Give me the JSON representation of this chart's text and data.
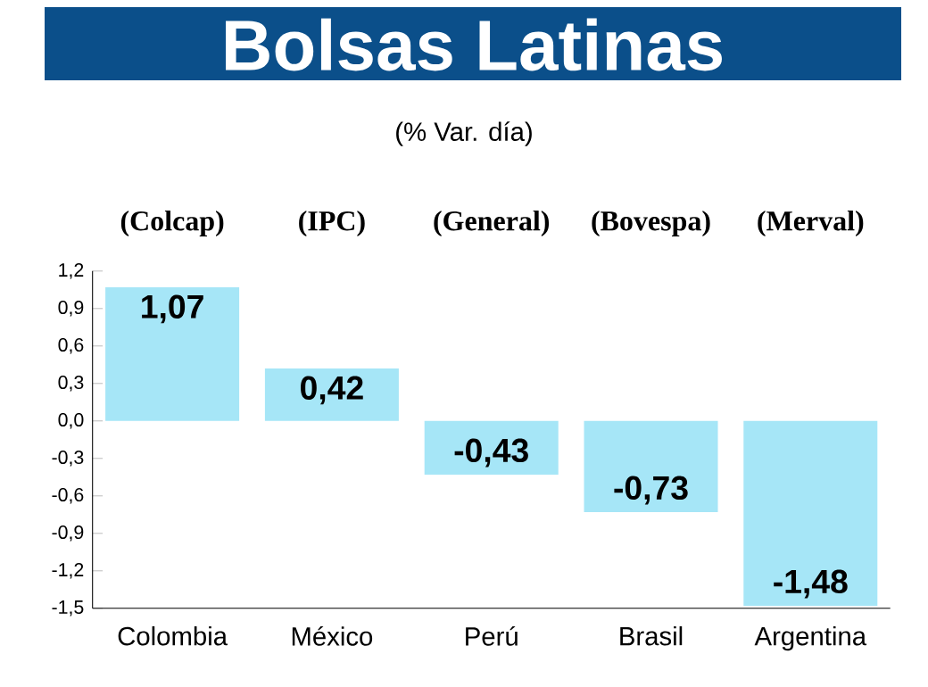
{
  "chart_data": {
    "type": "bar",
    "title": "Bolsas Latinas",
    "subtitle": "(% Var. día)",
    "categories": [
      "Colombia",
      "México",
      "Perú",
      "Brasil",
      "Argentina"
    ],
    "values": [
      1.07,
      0.42,
      -0.43,
      -0.73,
      -1.48
    ],
    "value_labels": [
      "1,07",
      "0,42",
      "-0,43",
      "-0,73",
      "-1,48"
    ],
    "color": "#a6e6f7",
    "ylim": [
      -1.5,
      1.2
    ],
    "yticks": [
      {
        "value": -1.5,
        "label": "-1,5"
      },
      {
        "value": -1.2,
        "label": "-1,2"
      },
      {
        "value": -0.9,
        "label": "-0,9"
      },
      {
        "value": -0.6,
        "label": "-0,6"
      },
      {
        "value": -0.3,
        "label": "-0,3"
      },
      {
        "value": 0,
        "label": "0,0"
      },
      {
        "value": 0.3,
        "label": "0,3"
      },
      {
        "value": 0.6,
        "label": "0,6"
      },
      {
        "value": 0.9,
        "label": "0,9"
      },
      {
        "value": 1.2,
        "label": "1,2"
      }
    ],
    "annotations": [
      "(Colcap)",
      "(IPC)",
      "(General)",
      "(Bovespa)",
      "(Merval)"
    ]
  }
}
